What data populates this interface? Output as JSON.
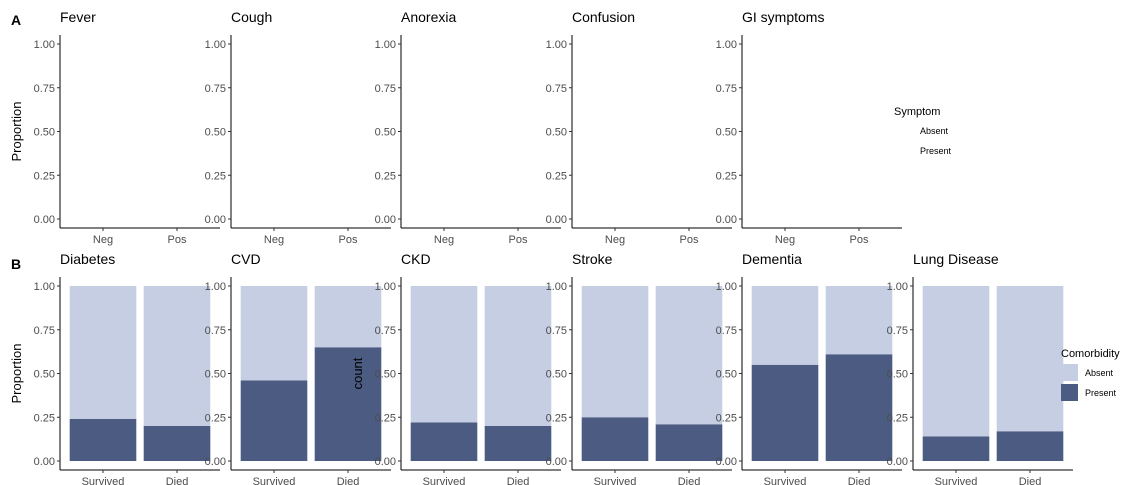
{
  "figure": {
    "tag_a": "A",
    "tag_b": "B",
    "colors": {
      "absent": "#c6cee3",
      "present": "#4b5b82"
    }
  },
  "legend_a": {
    "title": "Symptom",
    "items": [
      "Absent",
      "Present"
    ]
  },
  "legend_b": {
    "title": "Comorbidity",
    "items": [
      "Absent",
      "Present"
    ]
  },
  "chart_data": [
    {
      "type": "bar",
      "panel": "A",
      "title": "Fever",
      "ylabel": "Proportion",
      "categories": [
        "Neg",
        "Pos"
      ],
      "yticks": [
        "0.00",
        "0.25",
        "0.50",
        "0.75",
        "1.00"
      ],
      "ylim": [
        0,
        1
      ],
      "series": []
    },
    {
      "type": "bar",
      "panel": "A",
      "title": "Cough",
      "ylabel": "",
      "categories": [
        "Neg",
        "Pos"
      ],
      "yticks": [
        "0.00",
        "0.25",
        "0.50",
        "0.75",
        "1.00"
      ],
      "ylim": [
        0,
        1
      ],
      "series": []
    },
    {
      "type": "bar",
      "panel": "A",
      "title": "Anorexia",
      "ylabel": "",
      "categories": [
        "Neg",
        "Pos"
      ],
      "yticks": [
        "0.00",
        "0.25",
        "0.50",
        "0.75",
        "1.00"
      ],
      "ylim": [
        0,
        1
      ],
      "series": []
    },
    {
      "type": "bar",
      "panel": "A",
      "title": "Confusion",
      "ylabel": "",
      "categories": [
        "Neg",
        "Pos"
      ],
      "yticks": [
        "0.00",
        "0.25",
        "0.50",
        "0.75",
        "1.00"
      ],
      "ylim": [
        0,
        1
      ],
      "series": []
    },
    {
      "type": "bar",
      "panel": "A",
      "title": "GI symptoms",
      "ylabel": "",
      "categories": [
        "Neg",
        "Pos"
      ],
      "yticks": [
        "0.00",
        "0.25",
        "0.50",
        "0.75",
        "1.00"
      ],
      "ylim": [
        0,
        1
      ],
      "series": []
    },
    {
      "type": "bar",
      "panel": "B",
      "stacked": true,
      "title": "Diabetes",
      "ylabel": "Proportion",
      "categories": [
        "Survived",
        "Died"
      ],
      "yticks": [
        "0.00",
        "0.25",
        "0.50",
        "0.75",
        "1.00"
      ],
      "ylim": [
        0,
        1
      ],
      "series": [
        {
          "name": "Present",
          "values": [
            0.24,
            0.2
          ]
        },
        {
          "name": "Absent",
          "values": [
            0.76,
            0.8
          ]
        }
      ]
    },
    {
      "type": "bar",
      "panel": "B",
      "stacked": true,
      "title": "CVD",
      "ylabel": "",
      "categories": [
        "Survived",
        "Died"
      ],
      "yticks": [
        "0.00",
        "0.25",
        "0.50",
        "0.75",
        "1.00"
      ],
      "ylim": [
        0,
        1
      ],
      "series": [
        {
          "name": "Present",
          "values": [
            0.46,
            0.65
          ]
        },
        {
          "name": "Absent",
          "values": [
            0.54,
            0.35
          ]
        }
      ]
    },
    {
      "type": "bar",
      "panel": "B",
      "stacked": true,
      "title": "CKD",
      "ylabel": "count",
      "categories": [
        "Survived",
        "Died"
      ],
      "yticks": [
        "0.00",
        "0.25",
        "0.50",
        "0.75",
        "1.00"
      ],
      "ylim": [
        0,
        1
      ],
      "series": [
        {
          "name": "Present",
          "values": [
            0.22,
            0.2
          ]
        },
        {
          "name": "Absent",
          "values": [
            0.78,
            0.8
          ]
        }
      ]
    },
    {
      "type": "bar",
      "panel": "B",
      "stacked": true,
      "title": "Stroke",
      "ylabel": "",
      "categories": [
        "Survived",
        "Died"
      ],
      "yticks": [
        "0.00",
        "0.25",
        "0.50",
        "0.75",
        "1.00"
      ],
      "ylim": [
        0,
        1
      ],
      "series": [
        {
          "name": "Present",
          "values": [
            0.25,
            0.21
          ]
        },
        {
          "name": "Absent",
          "values": [
            0.75,
            0.79
          ]
        }
      ]
    },
    {
      "type": "bar",
      "panel": "B",
      "stacked": true,
      "title": "Dementia",
      "ylabel": "",
      "categories": [
        "Survived",
        "Died"
      ],
      "yticks": [
        "0.00",
        "0.25",
        "0.50",
        "0.75",
        "1.00"
      ],
      "ylim": [
        0,
        1
      ],
      "series": [
        {
          "name": "Present",
          "values": [
            0.55,
            0.61
          ]
        },
        {
          "name": "Absent",
          "values": [
            0.45,
            0.39
          ]
        }
      ]
    },
    {
      "type": "bar",
      "panel": "B",
      "stacked": true,
      "title": "Lung Disease",
      "ylabel": "",
      "categories": [
        "Survived",
        "Died"
      ],
      "yticks": [
        "0.00",
        "0.25",
        "0.50",
        "0.75",
        "1.00"
      ],
      "ylim": [
        0,
        1
      ],
      "series": [
        {
          "name": "Present",
          "values": [
            0.14,
            0.17
          ]
        },
        {
          "name": "Absent",
          "values": [
            0.86,
            0.83
          ]
        }
      ]
    }
  ]
}
